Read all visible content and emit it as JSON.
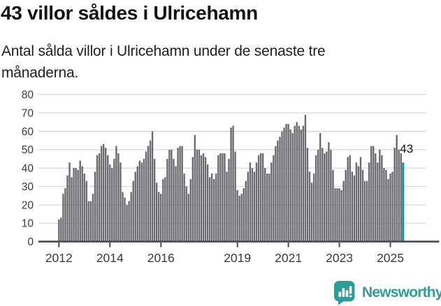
{
  "header": {
    "title": "43 villor såldes i Ulricehamn",
    "subtitle": "Antal sålda villor i Ulricehamn under de senaste tre\nmånaderna."
  },
  "chart_data": {
    "type": "bar",
    "title": "43 villor såldes i Ulricehamn",
    "subtitle": "Antal sålda villor i Ulricehamn under de senaste tre månaderna.",
    "x_unit": "month",
    "x_start": "2012-01",
    "x_end": "2025-07",
    "x_tick_labels": [
      "2012",
      "2014",
      "2016",
      "2019",
      "2021",
      "2023",
      "2025"
    ],
    "x_tick_years": [
      2012,
      2014,
      2016,
      2019,
      2021,
      2023,
      2025
    ],
    "ylabel": "",
    "xlabel": "",
    "ylim": [
      0,
      80
    ],
    "y_ticks": [
      0,
      10,
      20,
      30,
      40,
      50,
      60,
      70,
      80
    ],
    "grid": "horizontal",
    "bar_color": "#68686e",
    "values": [
      12,
      13,
      26,
      29,
      36,
      43,
      35,
      40,
      40,
      39,
      44,
      41,
      37,
      33,
      22,
      22,
      26,
      38,
      47,
      48,
      52,
      53,
      51,
      47,
      42,
      40,
      45,
      52,
      48,
      43,
      27,
      24,
      20,
      22,
      27,
      33,
      38,
      41,
      44,
      43,
      45,
      49,
      52,
      55,
      60,
      45,
      32,
      27,
      26,
      34,
      35,
      45,
      50,
      50,
      45,
      41,
      51,
      52,
      52,
      37,
      30,
      26,
      34,
      46,
      58,
      50,
      50,
      47,
      48,
      46,
      42,
      35,
      37,
      34,
      37,
      47,
      48,
      48,
      48,
      38,
      45,
      62,
      63,
      49,
      28,
      25,
      26,
      29,
      33,
      38,
      43,
      40,
      38,
      43,
      47,
      48,
      48,
      40,
      37,
      37,
      43,
      47,
      52,
      55,
      57,
      60,
      62,
      64,
      64,
      61,
      59,
      63,
      65,
      63,
      61,
      63,
      69,
      51,
      38,
      32,
      37,
      47,
      50,
      59,
      51,
      48,
      49,
      54,
      50,
      39,
      29,
      29,
      29,
      28,
      33,
      39,
      46,
      47,
      38,
      36,
      43,
      41,
      46,
      39,
      33,
      33,
      43,
      52,
      52,
      48,
      43,
      50,
      47,
      40,
      39,
      34,
      37,
      38,
      51,
      58,
      50,
      48,
      43
    ],
    "highlight": {
      "index": 162,
      "value": 43,
      "label": "43",
      "color": "#00959d"
    }
  },
  "footer": {
    "brand": "Newsworthy",
    "logo_icon": "bar-chart-speech-bubble-icon"
  },
  "colors": {
    "grid": "#d8d8d8",
    "axis": "#4c4c4e",
    "tick_label": "#3b3b3b",
    "annotation": "#141414",
    "bar": "#68686e",
    "highlight": "#00959d",
    "brand_teal": "#2f9c99"
  }
}
